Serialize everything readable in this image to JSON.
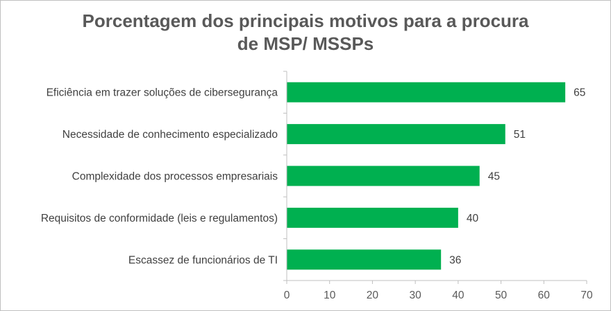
{
  "chart_data": {
    "type": "bar",
    "orientation": "horizontal",
    "title_lines": [
      "Porcentagem dos principais motivos para a procura",
      "de MSP/ MSSPs"
    ],
    "categories": [
      "Eficiência em trazer soluções de cibersegurança",
      "Necessidade de conhecimento especializado",
      "Complexidade dos processos empresariais",
      "Requisitos de conformidade (leis e regulamentos)",
      "Escassez de funcionários de TI"
    ],
    "series": [
      {
        "values": [
          65,
          51,
          45,
          40,
          36
        ]
      }
    ],
    "xlim": [
      0,
      70
    ],
    "xticks": [
      0,
      10,
      20,
      30,
      40,
      50,
      60,
      70
    ],
    "data_labels": true,
    "grid": false,
    "legend": "none",
    "colors": {
      "bar": "#00b050",
      "axis": "#bfbfbf",
      "title": "#595959",
      "text": "#404040"
    }
  }
}
